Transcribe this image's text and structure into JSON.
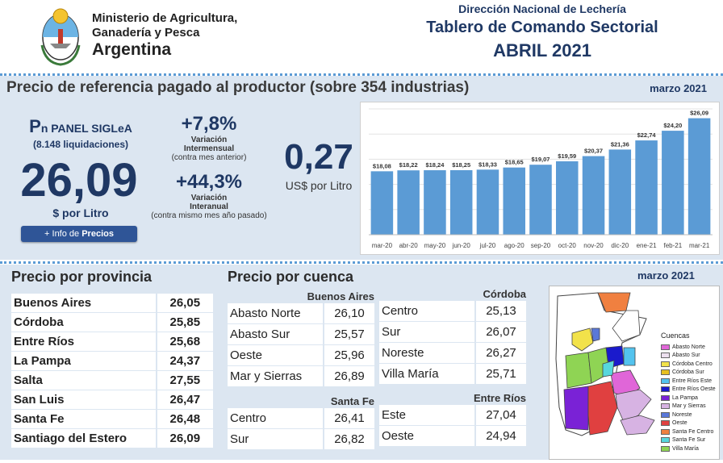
{
  "header": {
    "ministry_line1": "Ministerio de Agricultura,",
    "ministry_line2": "Ganadería y Pesca",
    "country": "Argentina",
    "direction": "Dirección Nacional de Lechería",
    "board_title": "Tablero de Comando Sectorial",
    "period": "ABRIL 2021"
  },
  "reference": {
    "title": "Precio de referencia pagado al productor (sobre 354 industrias)",
    "date": "marzo 2021",
    "pn_label_p": "P",
    "pn_label_rest": "n PANEL SIGLeA",
    "liquidations": "(8.148 liquidaciones)",
    "price": "26,09",
    "price_unit": "$ por Litro",
    "info_button_prefix": "+ Info de ",
    "info_button_bold": "Precios",
    "var_month": {
      "value": "+7,8%",
      "label1": "Variación",
      "label2": "Intermensual",
      "sub": "(contra mes anterior)"
    },
    "var_year": {
      "value": "+44,3%",
      "label1": "Variación",
      "label2": "Interanual",
      "sub": "(contra mismo mes año pasado)"
    },
    "usd_value": "0,27",
    "usd_unit": "US$ por Litro"
  },
  "chart_data": {
    "type": "bar",
    "categories": [
      "mar-20",
      "abr-20",
      "may-20",
      "jun-20",
      "jul-20",
      "ago-20",
      "sep-20",
      "oct-20",
      "nov-20",
      "dic-20",
      "ene-21",
      "feb-21",
      "mar-21"
    ],
    "values": [
      18.08,
      18.22,
      18.24,
      18.25,
      18.33,
      18.65,
      19.07,
      19.59,
      20.37,
      21.36,
      22.74,
      24.2,
      26.09
    ],
    "labels": [
      "$18,08",
      "$18,22",
      "$18,24",
      "$18,25",
      "$18,33",
      "$18,65",
      "$19,07",
      "$19,59",
      "$20,37",
      "$21,36",
      "$22,74",
      "$24,20",
      "$26,09"
    ],
    "color": "#5b9bd5",
    "grid": true
  },
  "province": {
    "title": "Precio por provincia",
    "rows": [
      {
        "name": "Buenos Aires",
        "value": "26,05"
      },
      {
        "name": "Córdoba",
        "value": "25,85"
      },
      {
        "name": "Entre Ríos",
        "value": "25,68"
      },
      {
        "name": "La Pampa",
        "value": "24,37"
      },
      {
        "name": "Salta",
        "value": "27,55"
      },
      {
        "name": "San Luis",
        "value": "26,47"
      },
      {
        "name": "Santa Fe",
        "value": "26,48"
      },
      {
        "name": "Santiago del Estero",
        "value": "26,09"
      }
    ]
  },
  "basin": {
    "title": "Precio por cuenca",
    "buenos_aires": {
      "name": "Buenos Aires",
      "rows": [
        {
          "name": "Abasto Norte",
          "value": "26,10"
        },
        {
          "name": "Abasto Sur",
          "value": "25,57"
        },
        {
          "name": "Oeste",
          "value": "25,96"
        },
        {
          "name": "Mar y Sierras",
          "value": "26,89"
        }
      ]
    },
    "santa_fe": {
      "name": "Santa Fe",
      "rows": [
        {
          "name": "Centro",
          "value": "26,41"
        },
        {
          "name": "Sur",
          "value": "26,82"
        }
      ]
    },
    "cordoba": {
      "name": "Córdoba",
      "rows": [
        {
          "name": "Centro",
          "value": "25,13"
        },
        {
          "name": "Sur",
          "value": "26,07"
        },
        {
          "name": "Noreste",
          "value": "26,27"
        },
        {
          "name": "Villa María",
          "value": "25,71"
        }
      ]
    },
    "entre_rios": {
      "name": "Entre Ríos",
      "rows": [
        {
          "name": "Este",
          "value": "27,04"
        },
        {
          "name": "Oeste",
          "value": "24,94"
        }
      ]
    }
  },
  "map": {
    "date": "marzo 2021",
    "legend_title": "Cuencas",
    "legend": [
      {
        "name": "Abasto Norte",
        "color": "#e066d8"
      },
      {
        "name": "Abasto Sur",
        "color": "#ede0ef"
      },
      {
        "name": "Córdoba Centro",
        "color": "#f2e24a"
      },
      {
        "name": "Córdoba Sur",
        "color": "#e8c020"
      },
      {
        "name": "Entre Ríos Este",
        "color": "#53c3ee"
      },
      {
        "name": "Entre Ríos Oeste",
        "color": "#1a1acc"
      },
      {
        "name": "La Pampa",
        "color": "#7a22d6"
      },
      {
        "name": "Mar y Sierras",
        "color": "#d7b3e3"
      },
      {
        "name": "Noreste",
        "color": "#5a78d8"
      },
      {
        "name": "Oeste",
        "color": "#e04040"
      },
      {
        "name": "Santa Fe Centro",
        "color": "#f08040"
      },
      {
        "name": "Santa Fe Sur",
        "color": "#57d7dd"
      },
      {
        "name": "Villa María",
        "color": "#8fd454"
      }
    ]
  }
}
